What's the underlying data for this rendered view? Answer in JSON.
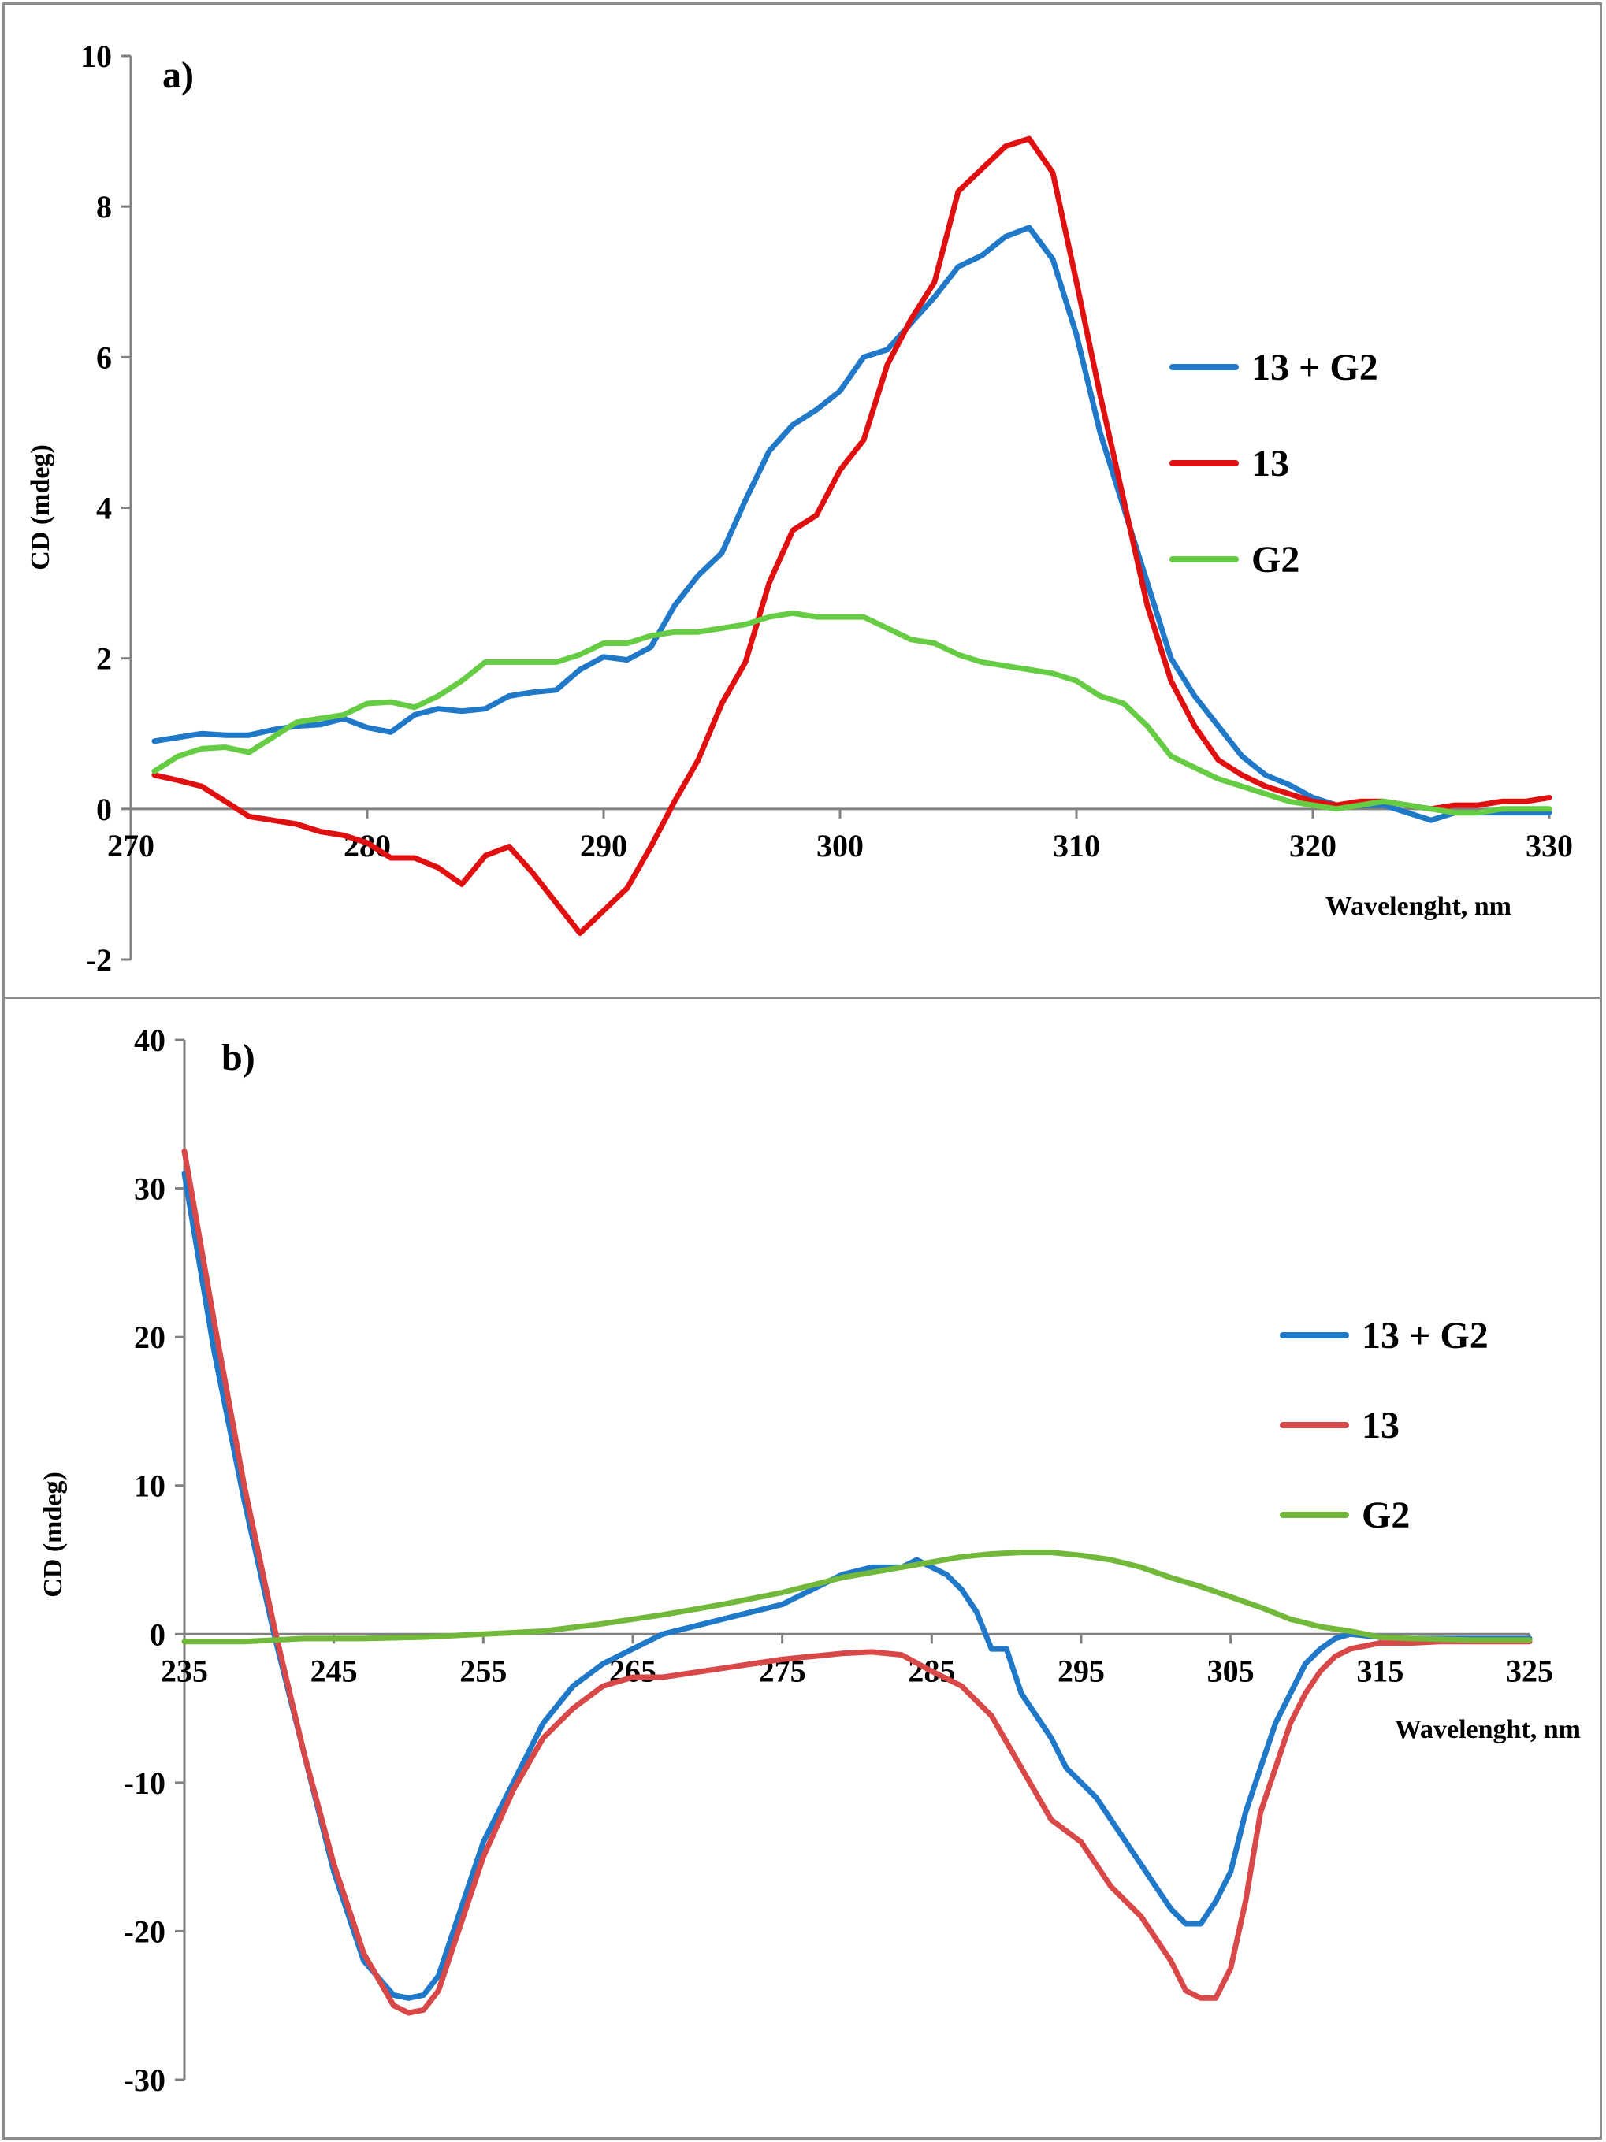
{
  "chart_data": [
    {
      "type": "line",
      "panel_label": "a)",
      "xlabel": "Wavelenght, nm",
      "ylabel": "CD (mdeg)",
      "xlim": [
        270,
        330
      ],
      "ylim": [
        -2,
        10
      ],
      "xticks": [
        270,
        280,
        290,
        300,
        310,
        320,
        330
      ],
      "yticks": [
        -2,
        0,
        2,
        4,
        6,
        8,
        10
      ],
      "legend_position": "right",
      "series": [
        {
          "name": "13 + G2",
          "color": "#1f78c8",
          "x": [
            271,
            272,
            273,
            274,
            275,
            276,
            277,
            278,
            279,
            280,
            281,
            282,
            283,
            284,
            285,
            286,
            287,
            288,
            289,
            290,
            291,
            292,
            293,
            294,
            295,
            296,
            297,
            298,
            299,
            300,
            301,
            302,
            303,
            304,
            305,
            306,
            307,
            308,
            309,
            310,
            311,
            312,
            313,
            314,
            315,
            316,
            317,
            318,
            319,
            320,
            321,
            322,
            323,
            324,
            325,
            326,
            327,
            328,
            329,
            330
          ],
          "y": [
            0.9,
            0.95,
            1.0,
            0.98,
            0.98,
            1.05,
            1.1,
            1.12,
            1.2,
            1.08,
            1.02,
            1.25,
            1.33,
            1.3,
            1.33,
            1.5,
            1.55,
            1.58,
            1.85,
            2.02,
            1.98,
            2.15,
            2.7,
            3.1,
            3.4,
            4.1,
            4.75,
            5.1,
            5.3,
            5.55,
            6.0,
            6.1,
            6.45,
            6.8,
            7.2,
            7.35,
            7.6,
            7.72,
            7.3,
            6.3,
            5.0,
            4.0,
            3.0,
            2.0,
            1.5,
            1.1,
            0.7,
            0.45,
            0.32,
            0.15,
            0.05,
            0.05,
            0.05,
            -0.05,
            -0.15,
            -0.05,
            -0.05,
            -0.05,
            -0.05,
            -0.05
          ]
        },
        {
          "name": "13",
          "color": "#e01010",
          "x": [
            271,
            272,
            273,
            274,
            275,
            276,
            277,
            278,
            279,
            280,
            281,
            282,
            283,
            284,
            285,
            286,
            287,
            288,
            289,
            290,
            291,
            292,
            293,
            294,
            295,
            296,
            297,
            298,
            299,
            300,
            301,
            302,
            303,
            304,
            305,
            306,
            307,
            308,
            309,
            310,
            311,
            312,
            313,
            314,
            315,
            316,
            317,
            318,
            319,
            320,
            321,
            322,
            323,
            324,
            325,
            326,
            327,
            328,
            329,
            330
          ],
          "y": [
            0.45,
            0.38,
            0.3,
            0.1,
            -0.1,
            -0.15,
            -0.2,
            -0.3,
            -0.35,
            -0.45,
            -0.65,
            -0.65,
            -0.78,
            -1.0,
            -0.62,
            -0.5,
            -0.85,
            -1.25,
            -1.65,
            -1.35,
            -1.05,
            -0.5,
            0.1,
            0.65,
            1.4,
            1.95,
            3.0,
            3.7,
            3.9,
            4.5,
            4.9,
            5.9,
            6.5,
            7.0,
            8.2,
            8.5,
            8.8,
            8.9,
            8.45,
            7.0,
            5.5,
            4.1,
            2.7,
            1.7,
            1.1,
            0.65,
            0.45,
            0.3,
            0.2,
            0.1,
            0.05,
            0.1,
            0.1,
            0.05,
            0.0,
            0.05,
            0.05,
            0.1,
            0.1,
            0.15
          ]
        },
        {
          "name": "G2",
          "color": "#66cc44",
          "x": [
            271,
            272,
            273,
            274,
            275,
            276,
            277,
            278,
            279,
            280,
            281,
            282,
            283,
            284,
            285,
            286,
            287,
            288,
            289,
            290,
            291,
            292,
            293,
            294,
            295,
            296,
            297,
            298,
            299,
            300,
            301,
            302,
            303,
            304,
            305,
            306,
            307,
            308,
            309,
            310,
            311,
            312,
            313,
            314,
            315,
            316,
            317,
            318,
            319,
            320,
            321,
            322,
            323,
            324,
            325,
            326,
            327,
            328,
            329,
            330
          ],
          "y": [
            0.5,
            0.7,
            0.8,
            0.82,
            0.75,
            0.95,
            1.15,
            1.2,
            1.25,
            1.4,
            1.42,
            1.35,
            1.5,
            1.7,
            1.95,
            1.95,
            1.95,
            1.95,
            2.05,
            2.2,
            2.2,
            2.3,
            2.35,
            2.35,
            2.4,
            2.45,
            2.55,
            2.6,
            2.55,
            2.55,
            2.55,
            2.4,
            2.25,
            2.2,
            2.05,
            1.95,
            1.9,
            1.85,
            1.8,
            1.7,
            1.5,
            1.4,
            1.1,
            0.7,
            0.55,
            0.4,
            0.3,
            0.2,
            0.1,
            0.05,
            0.0,
            0.05,
            0.1,
            0.05,
            0.0,
            -0.05,
            -0.05,
            0.0,
            0.0,
            0.0
          ]
        }
      ]
    },
    {
      "type": "line",
      "panel_label": "b)",
      "xlabel": "Wavelenght, nm",
      "ylabel": "CD (mdeg)",
      "xlim": [
        235,
        325
      ],
      "ylim": [
        -30,
        40
      ],
      "xticks": [
        235,
        245,
        255,
        265,
        275,
        285,
        295,
        305,
        315,
        325
      ],
      "yticks": [
        -30,
        -20,
        -10,
        0,
        10,
        20,
        30,
        40
      ],
      "legend_position": "right",
      "series": [
        {
          "name": "13 + G2",
          "color": "#1f78c8",
          "x": [
            235,
            237,
            239,
            241,
            243,
            245,
            247,
            249,
            250,
            251,
            252,
            253,
            255,
            257,
            259,
            261,
            263,
            265,
            267,
            269,
            271,
            273,
            275,
            277,
            279,
            281,
            283,
            284,
            285,
            286,
            287,
            288,
            289,
            290,
            291,
            292,
            293,
            294,
            295,
            296,
            297,
            298,
            299,
            300,
            301,
            302,
            303,
            304,
            305,
            306,
            307,
            308,
            309,
            310,
            311,
            312,
            313,
            315,
            317,
            319,
            321,
            323,
            325
          ],
          "y": [
            31,
            19,
            9,
            0,
            -8,
            -16,
            -22,
            -24.3,
            -24.5,
            -24.3,
            -23,
            -20,
            -14,
            -10,
            -6,
            -3.5,
            -2,
            -1,
            0,
            0.5,
            1,
            1.5,
            2,
            3,
            4,
            4.5,
            4.5,
            5,
            4.5,
            4,
            3,
            1.5,
            -1,
            -1,
            -4,
            -5.5,
            -7,
            -9,
            -10,
            -11,
            -12.5,
            -14,
            -15.5,
            -17,
            -18.5,
            -19.5,
            -19.5,
            -18,
            -16,
            -12,
            -9,
            -6,
            -4,
            -2,
            -1,
            -0.3,
            0,
            -0.2,
            -0.3,
            -0.3,
            -0.3,
            -0.3,
            -0.3
          ]
        },
        {
          "name": "13",
          "color": "#d94848",
          "x": [
            235,
            237,
            239,
            241,
            243,
            245,
            247,
            249,
            250,
            251,
            252,
            253,
            255,
            257,
            259,
            261,
            263,
            265,
            267,
            269,
            271,
            273,
            275,
            277,
            279,
            281,
            283,
            285,
            287,
            289,
            291,
            293,
            295,
            297,
            299,
            301,
            302,
            303,
            304,
            305,
            306,
            307,
            308,
            309,
            310,
            311,
            312,
            313,
            315,
            317,
            319,
            321,
            323,
            325
          ],
          "y": [
            32.5,
            21,
            10,
            0.5,
            -8,
            -15.5,
            -21.5,
            -25,
            -25.5,
            -25.3,
            -24,
            -21,
            -15,
            -10.5,
            -7,
            -5,
            -3.5,
            -2.9,
            -2.9,
            -2.6,
            -2.3,
            -2,
            -1.7,
            -1.5,
            -1.3,
            -1.2,
            -1.4,
            -2.5,
            -3.5,
            -5.5,
            -9,
            -12.5,
            -14,
            -17,
            -19,
            -22,
            -24,
            -24.5,
            -24.5,
            -22.5,
            -18,
            -12,
            -9,
            -6,
            -4,
            -2.5,
            -1.5,
            -1,
            -0.6,
            -0.6,
            -0.5,
            -0.5,
            -0.5,
            -0.5
          ]
        },
        {
          "name": "G2",
          "color": "#72b83a",
          "x": [
            235,
            239,
            243,
            247,
            251,
            255,
            259,
            263,
            267,
            271,
            275,
            279,
            283,
            287,
            289,
            291,
            293,
            295,
            297,
            299,
            301,
            303,
            305,
            307,
            309,
            311,
            313,
            315,
            317,
            321,
            325
          ],
          "y": [
            -0.5,
            -0.5,
            -0.3,
            -0.3,
            -0.2,
            0,
            0.2,
            0.7,
            1.3,
            2,
            2.8,
            3.8,
            4.5,
            5.2,
            5.4,
            5.5,
            5.5,
            5.3,
            5,
            4.5,
            3.8,
            3.2,
            2.5,
            1.8,
            1,
            0.5,
            0.2,
            -0.2,
            -0.3,
            -0.4,
            -0.4
          ]
        }
      ]
    }
  ]
}
